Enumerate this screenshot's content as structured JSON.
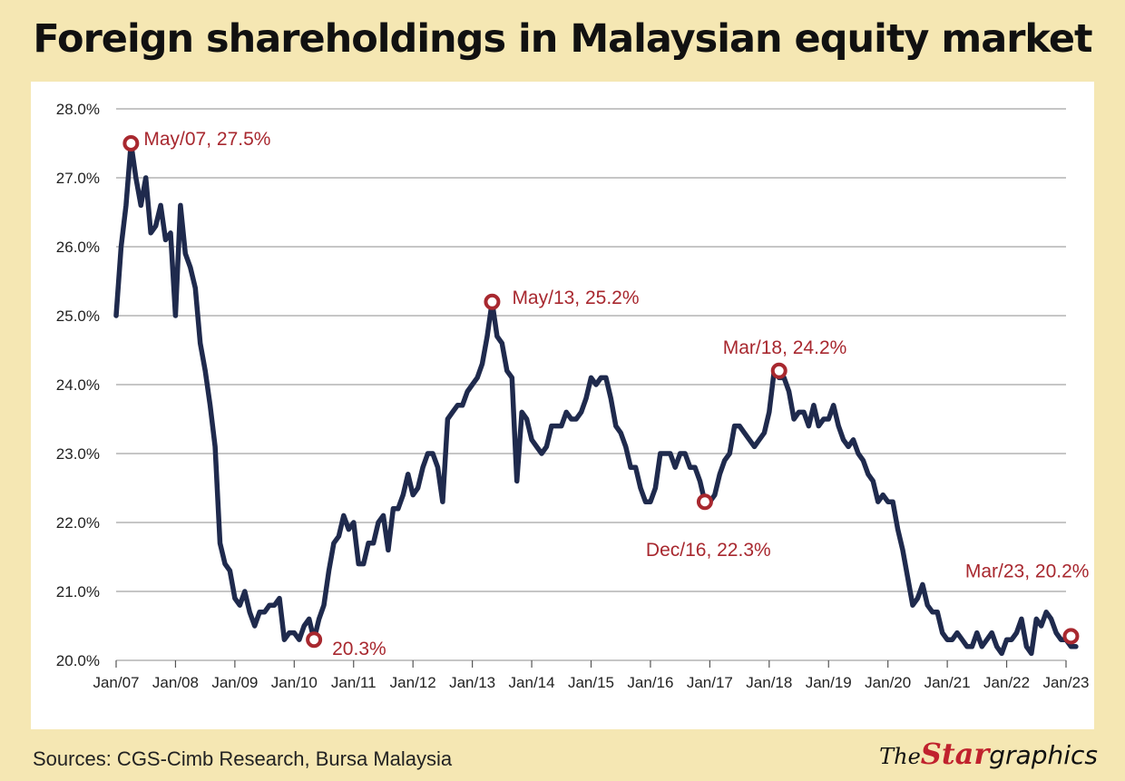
{
  "title": "Foreign shareholdings in Malaysian equity market",
  "source": "Sources: CGS-Cimb Research, Bursa Malaysia",
  "logo": {
    "the": "The",
    "star": "Star",
    "graphics": "graphics"
  },
  "colors": {
    "line": "#1f2a4d",
    "marker": "#a8282f",
    "background": "#f5e7b3",
    "panel": "#ffffff",
    "grid": "#b3b3b3"
  },
  "chart_data": {
    "type": "line",
    "title": "Foreign shareholdings in Malaysian equity market",
    "xlabel": "",
    "ylabel": "",
    "ylim": [
      20,
      28
    ],
    "xlim": [
      "2007-01",
      "2023-01"
    ],
    "grid": true,
    "ytick_labels": [
      "20.0%",
      "21.0%",
      "22.0%",
      "23.0%",
      "24.0%",
      "25.0%",
      "26.0%",
      "27.0%",
      "28.0%"
    ],
    "ytick_values": [
      20,
      21,
      22,
      23,
      24,
      25,
      26,
      27,
      28
    ],
    "xtick_labels": [
      "Jan/07",
      "Jan/08",
      "Jan/09",
      "Jan/10",
      "Jan/11",
      "Jan/12",
      "Jan/13",
      "Jan/14",
      "Jan/15",
      "Jan/16",
      "Jan/17",
      "Jan/18",
      "Jan/19",
      "Jan/20",
      "Jan/21",
      "Jan/22",
      "Jan/23"
    ],
    "xtick_values": [
      "2007-01",
      "2008-01",
      "2009-01",
      "2010-01",
      "2011-01",
      "2012-01",
      "2013-01",
      "2014-01",
      "2015-01",
      "2016-01",
      "2017-01",
      "2018-01",
      "2019-01",
      "2020-01",
      "2021-01",
      "2022-01",
      "2023-01"
    ],
    "series": [
      {
        "x": [
          "2007-01",
          "2007-02",
          "2007-03",
          "2007-04",
          "2007-05",
          "2007-06",
          "2007-07",
          "2007-08",
          "2007-09",
          "2007-10",
          "2007-11",
          "2007-12",
          "2008-01",
          "2008-02",
          "2008-03",
          "2008-04",
          "2008-05",
          "2008-06",
          "2008-07",
          "2008-08",
          "2008-09",
          "2008-10",
          "2008-11",
          "2008-12",
          "2009-01",
          "2009-02",
          "2009-03",
          "2009-04",
          "2009-05",
          "2009-06",
          "2009-07",
          "2009-08",
          "2009-09",
          "2009-10",
          "2009-11",
          "2009-12",
          "2010-01",
          "2010-02",
          "2010-03",
          "2010-04",
          "2010-05",
          "2010-06",
          "2010-07",
          "2010-08",
          "2010-09",
          "2010-10",
          "2010-11",
          "2010-12",
          "2011-01",
          "2011-02",
          "2011-03",
          "2011-04",
          "2011-05",
          "2011-06",
          "2011-07",
          "2011-08",
          "2011-09",
          "2011-10",
          "2011-11",
          "2011-12",
          "2012-01",
          "2012-02",
          "2012-03",
          "2012-04",
          "2012-05",
          "2012-06",
          "2012-07",
          "2012-08",
          "2012-09",
          "2012-10",
          "2012-11",
          "2012-12",
          "2013-01",
          "2013-02",
          "2013-03",
          "2013-04",
          "2013-05",
          "2013-06",
          "2013-07",
          "2013-08",
          "2013-09",
          "2013-10",
          "2013-11",
          "2013-12",
          "2014-01",
          "2014-02",
          "2014-03",
          "2014-04",
          "2014-05",
          "2014-06",
          "2014-07",
          "2014-08",
          "2014-09",
          "2014-10",
          "2014-11",
          "2014-12",
          "2015-01",
          "2015-02",
          "2015-03",
          "2015-04",
          "2015-05",
          "2015-06",
          "2015-07",
          "2015-08",
          "2015-09",
          "2015-10",
          "2015-11",
          "2015-12",
          "2016-01",
          "2016-02",
          "2016-03",
          "2016-04",
          "2016-05",
          "2016-06",
          "2016-07",
          "2016-08",
          "2016-09",
          "2016-10",
          "2016-11",
          "2016-12",
          "2017-01",
          "2017-02",
          "2017-03",
          "2017-04",
          "2017-05",
          "2017-06",
          "2017-07",
          "2017-08",
          "2017-09",
          "2017-10",
          "2017-11",
          "2017-12",
          "2018-01",
          "2018-02",
          "2018-03",
          "2018-04",
          "2018-05",
          "2018-06",
          "2018-07",
          "2018-08",
          "2018-09",
          "2018-10",
          "2018-11",
          "2018-12",
          "2019-01",
          "2019-02",
          "2019-03",
          "2019-04",
          "2019-05",
          "2019-06",
          "2019-07",
          "2019-08",
          "2019-09",
          "2019-10",
          "2019-11",
          "2019-12",
          "2020-01",
          "2020-02",
          "2020-03",
          "2020-04",
          "2020-05",
          "2020-06",
          "2020-07",
          "2020-08",
          "2020-09",
          "2020-10",
          "2020-11",
          "2020-12",
          "2021-01",
          "2021-02",
          "2021-03",
          "2021-04",
          "2021-05",
          "2021-06",
          "2021-07",
          "2021-08",
          "2021-09",
          "2021-10",
          "2021-11",
          "2021-12",
          "2022-01",
          "2022-02",
          "2022-03",
          "2022-04",
          "2022-05",
          "2022-06",
          "2022-07",
          "2022-08",
          "2022-09",
          "2022-10",
          "2022-11",
          "2022-12",
          "2023-01",
          "2023-02",
          "2023-03"
        ],
        "y": [
          25.0,
          26.0,
          26.6,
          27.5,
          27.0,
          26.6,
          27.0,
          26.2,
          26.3,
          26.6,
          26.1,
          26.2,
          25.0,
          26.6,
          25.9,
          25.7,
          25.4,
          24.6,
          24.2,
          23.7,
          23.1,
          21.7,
          21.4,
          21.3,
          20.9,
          20.8,
          21.0,
          20.7,
          20.5,
          20.7,
          20.7,
          20.8,
          20.8,
          20.9,
          20.3,
          20.4,
          20.4,
          20.3,
          20.5,
          20.6,
          20.3,
          20.6,
          20.8,
          21.3,
          21.7,
          21.8,
          22.1,
          21.9,
          22.0,
          21.4,
          21.4,
          21.7,
          21.7,
          22.0,
          22.1,
          21.6,
          22.2,
          22.2,
          22.4,
          22.7,
          22.4,
          22.5,
          22.8,
          23.0,
          23.0,
          22.8,
          22.3,
          23.5,
          23.6,
          23.7,
          23.7,
          23.9,
          24.0,
          24.1,
          24.3,
          24.7,
          25.2,
          24.7,
          24.6,
          24.2,
          24.1,
          22.6,
          23.6,
          23.5,
          23.2,
          23.1,
          23.0,
          23.1,
          23.4,
          23.4,
          23.4,
          23.6,
          23.5,
          23.5,
          23.6,
          23.8,
          24.1,
          24.0,
          24.1,
          24.1,
          23.8,
          23.4,
          23.3,
          23.1,
          22.8,
          22.8,
          22.5,
          22.3,
          22.3,
          22.5,
          23.0,
          23.0,
          23.0,
          22.8,
          23.0,
          23.0,
          22.8,
          22.8,
          22.6,
          22.3,
          22.3,
          22.4,
          22.7,
          22.9,
          23.0,
          23.4,
          23.4,
          23.3,
          23.2,
          23.1,
          23.2,
          23.3,
          23.6,
          24.2,
          24.1,
          24.1,
          23.9,
          23.5,
          23.6,
          23.6,
          23.4,
          23.7,
          23.4,
          23.5,
          23.5,
          23.7,
          23.4,
          23.2,
          23.1,
          23.2,
          23.0,
          22.9,
          22.7,
          22.6,
          22.3,
          22.4,
          22.3,
          22.3,
          21.9,
          21.6,
          21.2,
          20.8,
          20.9,
          21.1,
          20.8,
          20.7,
          20.7,
          20.4,
          20.3,
          20.3,
          20.4,
          20.3,
          20.2,
          20.2,
          20.4,
          20.2,
          20.3,
          20.4,
          20.2,
          20.1,
          20.3,
          20.3,
          20.4,
          20.6,
          20.2,
          20.1,
          20.6,
          20.5,
          20.7,
          20.6,
          20.4,
          20.3,
          20.3,
          20.2,
          20.2
        ]
      }
    ],
    "annotations": [
      {
        "label": "May/07, 27.5%",
        "x": "2007-04",
        "y": 27.5
      },
      {
        "label": "20.3%",
        "x": "2010-05",
        "y": 20.3
      },
      {
        "label": "May/13, 25.2%",
        "x": "2013-05",
        "y": 25.2
      },
      {
        "label": "Dec/16, 22.3%",
        "x": "2016-12",
        "y": 22.3
      },
      {
        "label": "Mar/18, 24.2%",
        "x": "2018-03",
        "y": 24.2
      },
      {
        "label": "Mar/23, 20.2%",
        "x": "2023-02",
        "y": 20.35
      }
    ]
  }
}
